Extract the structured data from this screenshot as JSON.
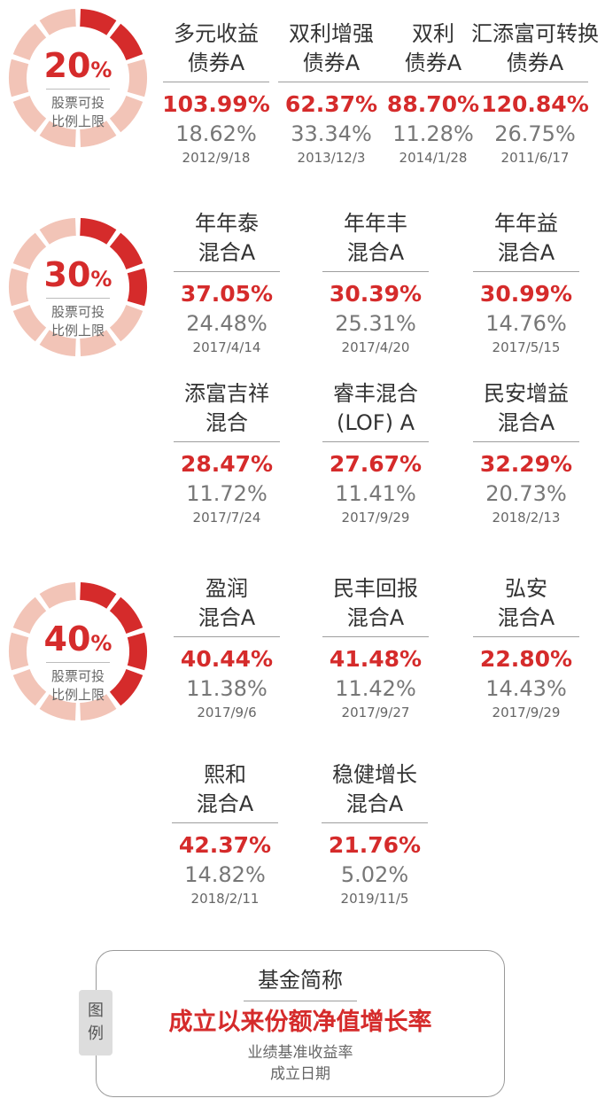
{
  "colors": {
    "accent": "#d52b2b",
    "segment_empty": "#f2c4b7",
    "benchmark_text": "#777777"
  },
  "donut_caption_line1": "股票可投",
  "donut_caption_line2": "比例上限",
  "tiers": [
    {
      "pct_num": "20",
      "pct_sign": "%",
      "filled_fraction": 0.2,
      "funds": [
        {
          "name_line1": "多元收益",
          "name_line2": "债券A",
          "return": "103.99%",
          "benchmark": "18.62%",
          "date": "2012/9/18"
        },
        {
          "name_line1": "双利增强",
          "name_line2": "债券A",
          "return": "62.37%",
          "benchmark": "33.34%",
          "date": "2013/12/3"
        },
        {
          "name_line1": "双利",
          "name_line2": "债券A",
          "return": "88.70%",
          "benchmark": "11.28%",
          "date": "2014/1/28"
        },
        {
          "name_line1": "汇添富可转换",
          "name_line2": "债券A",
          "return": "120.84%",
          "benchmark": "26.75%",
          "date": "2011/6/17"
        }
      ]
    },
    {
      "pct_num": "30",
      "pct_sign": "%",
      "filled_fraction": 0.3,
      "funds": [
        {
          "name_line1": "年年泰",
          "name_line2": "混合A",
          "return": "37.05%",
          "benchmark": "24.48%",
          "date": "2017/4/14"
        },
        {
          "name_line1": "年年丰",
          "name_line2": "混合A",
          "return": "30.39%",
          "benchmark": "25.31%",
          "date": "2017/4/20"
        },
        {
          "name_line1": "年年益",
          "name_line2": "混合A",
          "return": "30.99%",
          "benchmark": "14.76%",
          "date": "2017/5/15"
        },
        {
          "name_line1": "添富吉祥",
          "name_line2": "混合",
          "return": "28.47%",
          "benchmark": "11.72%",
          "date": "2017/7/24"
        },
        {
          "name_line1": "睿丰混合",
          "name_line2": "(LOF) A",
          "return": "27.67%",
          "benchmark": "11.41%",
          "date": "2017/9/29"
        },
        {
          "name_line1": "民安增益",
          "name_line2": "混合A",
          "return": "32.29%",
          "benchmark": "20.73%",
          "date": "2018/2/13"
        }
      ]
    },
    {
      "pct_num": "40",
      "pct_sign": "%",
      "filled_fraction": 0.4,
      "funds": [
        {
          "name_line1": "盈润",
          "name_line2": "混合A",
          "return": "40.44%",
          "benchmark": "11.38%",
          "date": "2017/9/6"
        },
        {
          "name_line1": "民丰回报",
          "name_line2": "混合A",
          "return": "41.48%",
          "benchmark": "11.42%",
          "date": "2017/9/27"
        },
        {
          "name_line1": "弘安",
          "name_line2": "混合A",
          "return": "22.80%",
          "benchmark": "14.43%",
          "date": "2017/9/29"
        },
        {
          "name_line1": "熙和",
          "name_line2": "混合A",
          "return": "42.37%",
          "benchmark": "14.82%",
          "date": "2018/2/11"
        },
        {
          "name_line1": "稳健增长",
          "name_line2": "混合A",
          "return": "21.76%",
          "benchmark": "5.02%",
          "date": "2019/11/5"
        }
      ]
    }
  ],
  "legend": {
    "tag_line1": "图",
    "tag_line2": "例",
    "name": "基金简称",
    "return": "成立以来份额净值增长率",
    "benchmark": "业绩基准收益率",
    "date": "成立日期"
  }
}
